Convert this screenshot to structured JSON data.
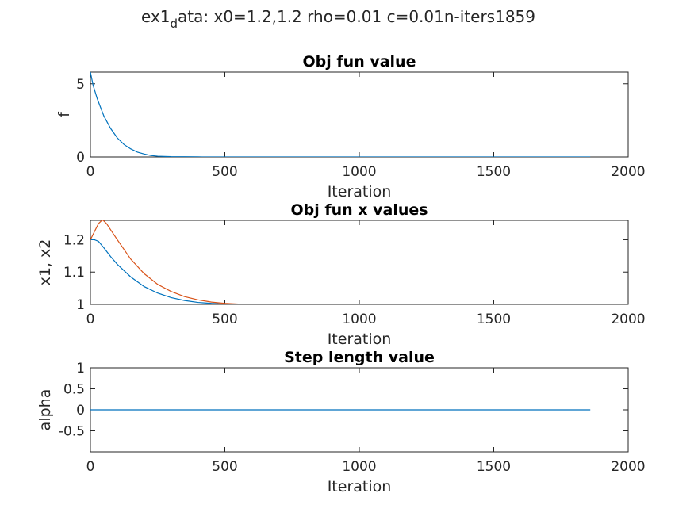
{
  "figure": {
    "suptitle_main": "ex1",
    "suptitle_sub": "d",
    "suptitle_rest": "ata: x0=1.2,1.2 rho=0.01 c=0.01n-iters1859"
  },
  "chart_data": [
    {
      "type": "line",
      "title": "Obj fun value",
      "xlabel": "Iteration",
      "ylabel": "f",
      "xlim": [
        0,
        2000
      ],
      "ylim": [
        0,
        5.8
      ],
      "xticks": [
        0,
        500,
        1000,
        1500,
        2000
      ],
      "yticks": [
        0,
        5
      ],
      "grid": false,
      "series": [
        {
          "color": "#0072bd",
          "x": [
            0,
            10,
            25,
            50,
            75,
            100,
            125,
            150,
            175,
            200,
            225,
            250,
            300,
            400,
            600,
            800,
            1000,
            1200,
            1400,
            1600,
            1859
          ],
          "y": [
            5.8,
            4.9,
            4.0,
            2.8,
            1.95,
            1.3,
            0.85,
            0.55,
            0.33,
            0.2,
            0.1,
            0.05,
            0.02,
            0.005,
            0.0,
            0.0,
            0.0,
            0.0,
            0.0,
            0.0,
            0.0
          ]
        }
      ]
    },
    {
      "type": "line",
      "title": "Obj fun x values",
      "xlabel": "Iteration",
      "ylabel": "x1, x2",
      "xlim": [
        0,
        2000
      ],
      "ylim": [
        1.0,
        1.26
      ],
      "xticks": [
        0,
        500,
        1000,
        1500,
        2000
      ],
      "yticks": [
        1,
        1.1,
        1.2
      ],
      "yticklabels": [
        "1",
        "1.1",
        "1.2"
      ],
      "grid": false,
      "series": [
        {
          "color": "#0072bd",
          "x": [
            0,
            15,
            30,
            50,
            75,
            100,
            150,
            200,
            250,
            300,
            350,
            400,
            450,
            500,
            550,
            800,
            1000,
            1500,
            1859
          ],
          "y": [
            1.2,
            1.2,
            1.195,
            1.175,
            1.148,
            1.124,
            1.085,
            1.055,
            1.035,
            1.021,
            1.012,
            1.006,
            1.003,
            1.001,
            1.0,
            1.0,
            1.0,
            1.0,
            1.0
          ]
        },
        {
          "color": "#d95319",
          "x": [
            0,
            15,
            30,
            45,
            60,
            80,
            100,
            150,
            200,
            250,
            300,
            350,
            400,
            450,
            500,
            550,
            800,
            1000,
            1500,
            1859
          ],
          "y": [
            1.2,
            1.225,
            1.25,
            1.262,
            1.25,
            1.225,
            1.2,
            1.14,
            1.095,
            1.062,
            1.04,
            1.024,
            1.014,
            1.007,
            1.003,
            1.001,
            1.0,
            1.0,
            1.0,
            1.0
          ]
        }
      ]
    },
    {
      "type": "line",
      "title": "Step length value",
      "xlabel": "Iteration",
      "ylabel": "alpha",
      "xlim": [
        0,
        2000
      ],
      "ylim": [
        -1,
        1
      ],
      "xticks": [
        0,
        500,
        1000,
        1500,
        2000
      ],
      "yticks": [
        -0.5,
        0,
        0.5,
        1
      ],
      "yticklabels": [
        "-0.5",
        "0",
        "0.5",
        "1"
      ],
      "grid": false,
      "series": [
        {
          "color": "#0072bd",
          "x": [
            0,
            1859
          ],
          "y": [
            0.0,
            0.0
          ]
        }
      ]
    }
  ]
}
